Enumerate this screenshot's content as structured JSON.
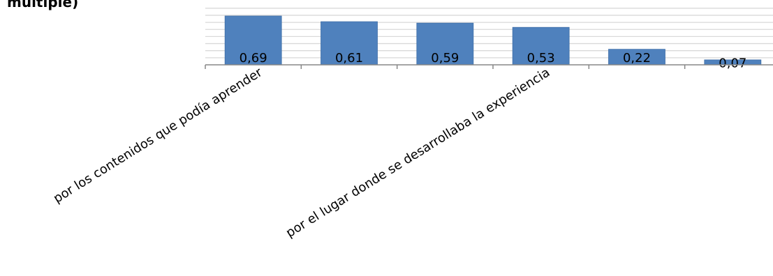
{
  "chart_data": {
    "type": "bar",
    "title": "múltiple)",
    "categories": [
      "por los contenidos que podía aprender",
      "",
      "",
      "por el lugar donde se desarrollaba la experiencia",
      "",
      ""
    ],
    "values": [
      0.69,
      0.61,
      0.59,
      0.53,
      0.22,
      0.07
    ],
    "value_labels": [
      "0,69",
      "0,61",
      "0,59",
      "0,53",
      "0,22",
      "0,07"
    ],
    "ylim": [
      0,
      0.8
    ],
    "grid": true,
    "legend": "none",
    "colors": {
      "bar": "#4F81BD",
      "bar_edge": "#3F6FA8",
      "grid": "#D9D9D9",
      "axis": "#878787"
    }
  }
}
